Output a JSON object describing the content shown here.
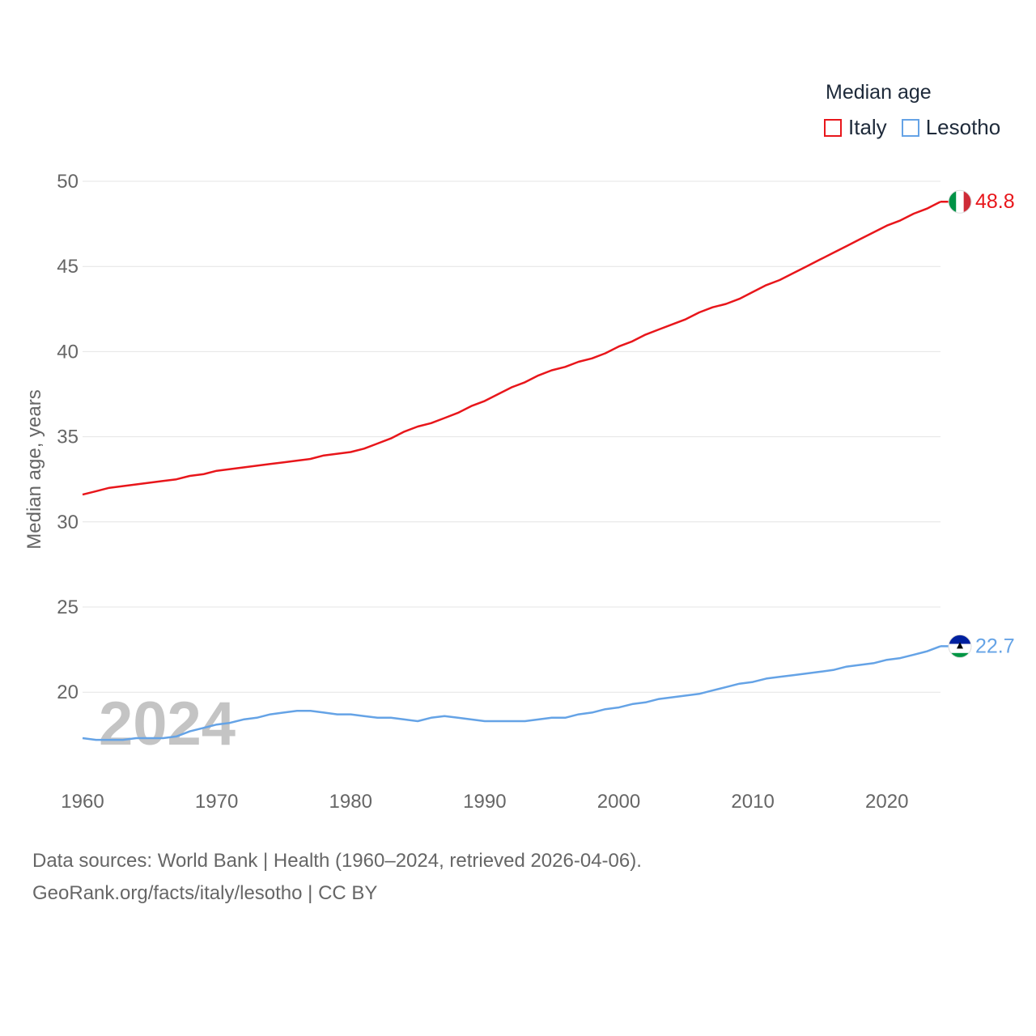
{
  "legend": {
    "title": "Median age",
    "items": [
      {
        "label": "Italy",
        "color": "#e8161b"
      },
      {
        "label": "Lesotho",
        "color": "#65a3e6"
      }
    ]
  },
  "source": {
    "line1": "Data sources: World Bank | Health (1960–2024, retrieved 2026-04-06).",
    "line2": "GeoRank.org/facts/italy/lesotho | CC BY"
  },
  "chart_data": {
    "type": "line",
    "title": "Median age",
    "xlabel": "",
    "ylabel": "Median age, years",
    "year_watermark": "2024",
    "xlim": [
      1960,
      2024
    ],
    "ylim": [
      15,
      50
    ],
    "yticks": [
      20,
      25,
      30,
      35,
      40,
      45,
      50
    ],
    "xticks": [
      1960,
      1970,
      1980,
      1990,
      2000,
      2010,
      2020
    ],
    "x": [
      1960,
      1961,
      1962,
      1963,
      1964,
      1965,
      1966,
      1967,
      1968,
      1969,
      1970,
      1971,
      1972,
      1973,
      1974,
      1975,
      1976,
      1977,
      1978,
      1979,
      1980,
      1981,
      1982,
      1983,
      1984,
      1985,
      1986,
      1987,
      1988,
      1989,
      1990,
      1991,
      1992,
      1993,
      1994,
      1995,
      1996,
      1997,
      1998,
      1999,
      2000,
      2001,
      2002,
      2003,
      2004,
      2005,
      2006,
      2007,
      2008,
      2009,
      2010,
      2011,
      2012,
      2013,
      2014,
      2015,
      2016,
      2017,
      2018,
      2019,
      2020,
      2021,
      2022,
      2023,
      2024
    ],
    "series": [
      {
        "name": "Italy",
        "color": "#e8161b",
        "end_label": "48.8",
        "values": [
          31.6,
          31.8,
          32.0,
          32.1,
          32.2,
          32.3,
          32.4,
          32.5,
          32.7,
          32.8,
          33.0,
          33.1,
          33.2,
          33.3,
          33.4,
          33.5,
          33.6,
          33.7,
          33.9,
          34.0,
          34.1,
          34.3,
          34.6,
          34.9,
          35.3,
          35.6,
          35.8,
          36.1,
          36.4,
          36.8,
          37.1,
          37.5,
          37.9,
          38.2,
          38.6,
          38.9,
          39.1,
          39.4,
          39.6,
          39.9,
          40.3,
          40.6,
          41.0,
          41.3,
          41.6,
          41.9,
          42.3,
          42.6,
          42.8,
          43.1,
          43.5,
          43.9,
          44.2,
          44.6,
          45.0,
          45.4,
          45.8,
          46.2,
          46.6,
          47.0,
          47.4,
          47.7,
          48.1,
          48.4,
          48.8
        ]
      },
      {
        "name": "Lesotho",
        "color": "#65a3e6",
        "end_label": "22.7",
        "values": [
          17.3,
          17.2,
          17.2,
          17.2,
          17.3,
          17.3,
          17.3,
          17.4,
          17.7,
          17.9,
          18.1,
          18.2,
          18.4,
          18.5,
          18.7,
          18.8,
          18.9,
          18.9,
          18.8,
          18.7,
          18.7,
          18.6,
          18.5,
          18.5,
          18.4,
          18.3,
          18.5,
          18.6,
          18.5,
          18.4,
          18.3,
          18.3,
          18.3,
          18.3,
          18.4,
          18.5,
          18.5,
          18.7,
          18.8,
          19.0,
          19.1,
          19.3,
          19.4,
          19.6,
          19.7,
          19.8,
          19.9,
          20.1,
          20.3,
          20.5,
          20.6,
          20.8,
          20.9,
          21.0,
          21.1,
          21.2,
          21.3,
          21.5,
          21.6,
          21.7,
          21.9,
          22.0,
          22.2,
          22.4,
          22.7
        ]
      }
    ]
  }
}
